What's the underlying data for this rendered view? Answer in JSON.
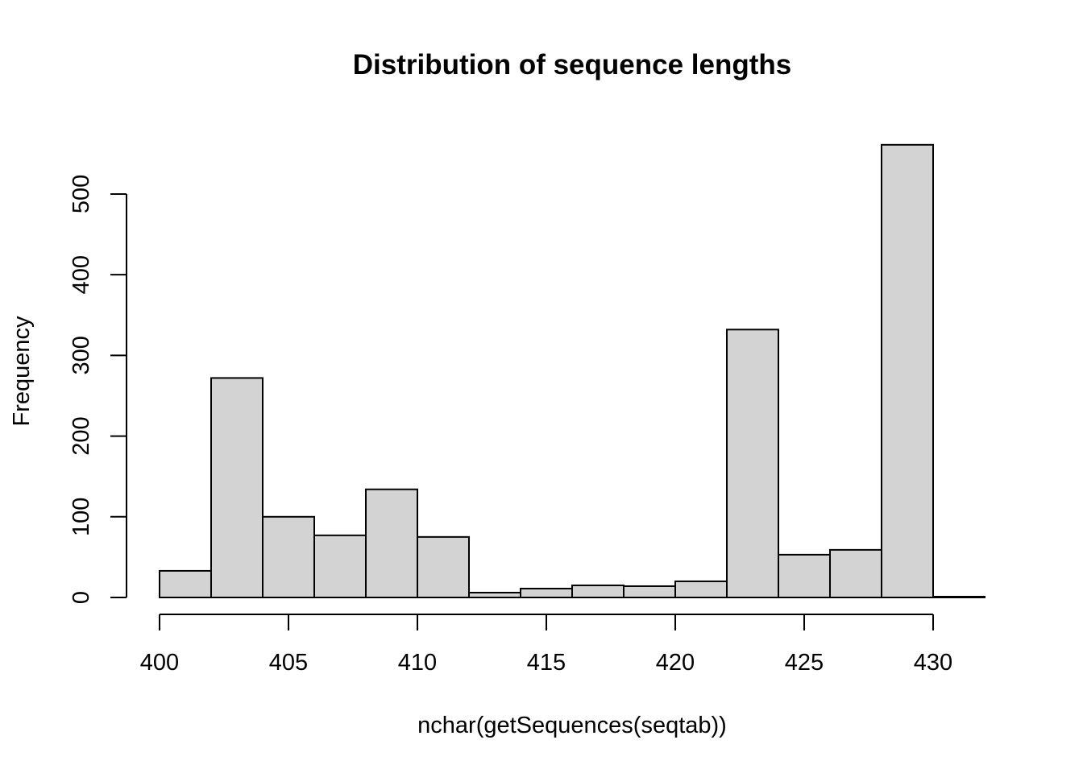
{
  "chart_data": {
    "type": "bar",
    "title": "Distribution of sequence lengths",
    "xlabel": "nchar(getSequences(seqtab))",
    "ylabel": "Frequency",
    "bins": [
      {
        "start": 400,
        "end": 402,
        "count": 33
      },
      {
        "start": 402,
        "end": 404,
        "count": 272
      },
      {
        "start": 404,
        "end": 406,
        "count": 100
      },
      {
        "start": 406,
        "end": 408,
        "count": 77
      },
      {
        "start": 408,
        "end": 410,
        "count": 134
      },
      {
        "start": 410,
        "end": 412,
        "count": 75
      },
      {
        "start": 412,
        "end": 414,
        "count": 6
      },
      {
        "start": 414,
        "end": 416,
        "count": 11
      },
      {
        "start": 416,
        "end": 418,
        "count": 15
      },
      {
        "start": 418,
        "end": 420,
        "count": 14
      },
      {
        "start": 420,
        "end": 422,
        "count": 20
      },
      {
        "start": 422,
        "end": 424,
        "count": 332
      },
      {
        "start": 424,
        "end": 426,
        "count": 53
      },
      {
        "start": 426,
        "end": 428,
        "count": 59
      },
      {
        "start": 428,
        "end": 430,
        "count": 561
      },
      {
        "start": 430,
        "end": 432,
        "count": 1
      }
    ],
    "xticks": [
      400,
      405,
      410,
      415,
      420,
      425,
      430
    ],
    "yticks": [
      0,
      100,
      200,
      300,
      400,
      500
    ],
    "xlim": [
      400,
      432
    ],
    "ylim": [
      0,
      561
    ],
    "grid": false,
    "bar_color": "#d3d3d3",
    "edge_color": "#000000"
  }
}
